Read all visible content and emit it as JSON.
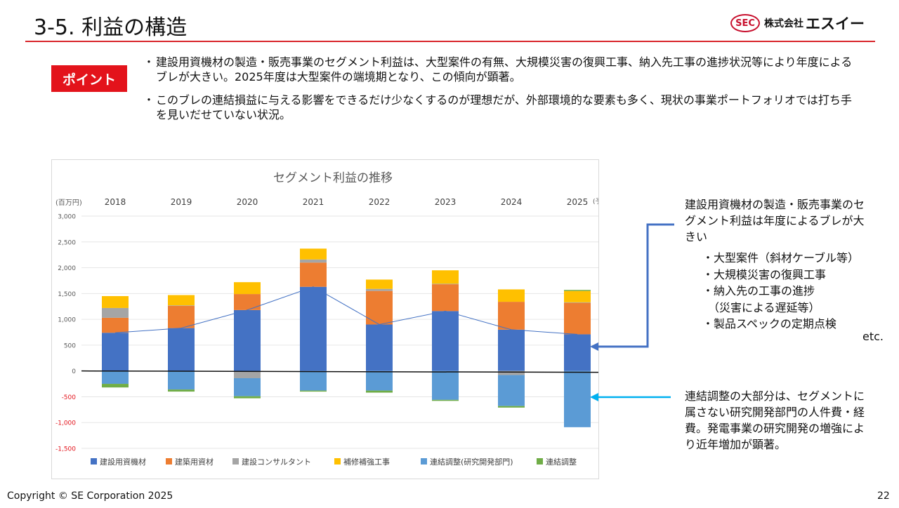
{
  "header": {
    "title": "3-5. 利益の構造"
  },
  "logo": {
    "seal_text": "SEC",
    "prefix": "株式会社",
    "name": "エスイー"
  },
  "point": {
    "badge": "ポイント",
    "bullets": [
      "建設用資機材の製造・販売事業のセグメント利益は、大型案件の有無、大規模災害の復興工事、納入先工事の進捗状況等により年度によるブレが大きい。2025年度は大型案件の端境期となり、この傾向が顕著。",
      "このブレの連結損益に与える影響をできるだけ少なくするのが理想だが、外部環境的な要素も多く、現状の事業ポートフォリオでは打ち手を見いだせていない状況。"
    ]
  },
  "notes": {
    "volatility": "建設用資機材の製造・販売事業のセグメント利益は年度によるブレが大きい",
    "factors": [
      "・大型案件（斜材ケーブル等）",
      "・大規模災害の復興工事",
      "・納入先の工事の進捗",
      "　（災害による遅延等）",
      "・製品スペックの定期点検"
    ],
    "etc": "etc.",
    "adjustment": "連結調整の大部分は、セグメントに属さない研究開発部門の人件費・経費。発電事業の研究開発の増強により近年増加が顕著。"
  },
  "footer": {
    "copyright": "Copyright © SE Corporation 2025",
    "page": "22"
  },
  "colors": {
    "accent": "#d9262b",
    "badge": "#e3131b",
    "callout_dark": "#4472c4",
    "callout_light": "#00b0f0"
  },
  "chart_data": {
    "type": "bar",
    "stacked": true,
    "title": "セグメント利益の推移",
    "unit": "(百万円)",
    "categories": [
      "2018",
      "2019",
      "2020",
      "2021",
      "2022",
      "2023",
      "2024",
      "2025"
    ],
    "forecast_marker": "(予)",
    "ylim": [
      -1500,
      3000
    ],
    "yticks": [
      3000,
      2500,
      2000,
      1500,
      1000,
      500,
      0,
      -500,
      -1000,
      -1500
    ],
    "ytick_labels": [
      "3,000",
      "2,500",
      "2,000",
      "1,500",
      "1,000",
      "500",
      "0",
      "-500",
      "-1,000",
      "-1,500"
    ],
    "series": [
      {
        "name": "建設用資機材",
        "color": "#4472c4",
        "values": [
          740,
          830,
          1180,
          1630,
          900,
          1160,
          800,
          710
        ]
      },
      {
        "name": "建築用資材",
        "color": "#ed7d31",
        "values": [
          290,
          430,
          310,
          470,
          650,
          520,
          540,
          610
        ]
      },
      {
        "name": "建設コンサルタント",
        "color": "#a5a5a5",
        "values": [
          190,
          10,
          -140,
          60,
          40,
          10,
          -80,
          10
        ]
      },
      {
        "name": "補修補強工事",
        "color": "#ffc000",
        "values": [
          230,
          200,
          230,
          210,
          180,
          260,
          240,
          220
        ]
      },
      {
        "name": "連結調整(研究開発部門)",
        "color": "#5b9bd5",
        "values": [
          -250,
          -360,
          -350,
          -380,
          -380,
          -560,
          -600,
          -1090
        ]
      },
      {
        "name": "連結調整",
        "color": "#70ad47",
        "values": [
          -70,
          -40,
          -40,
          -20,
          -40,
          -20,
          -30,
          20
        ]
      }
    ],
    "line": {
      "values": [
        740,
        830,
        1180,
        1630,
        900,
        1160,
        800,
        710
      ],
      "color": "#4472c4"
    },
    "legend": "bottom",
    "grid": true
  }
}
